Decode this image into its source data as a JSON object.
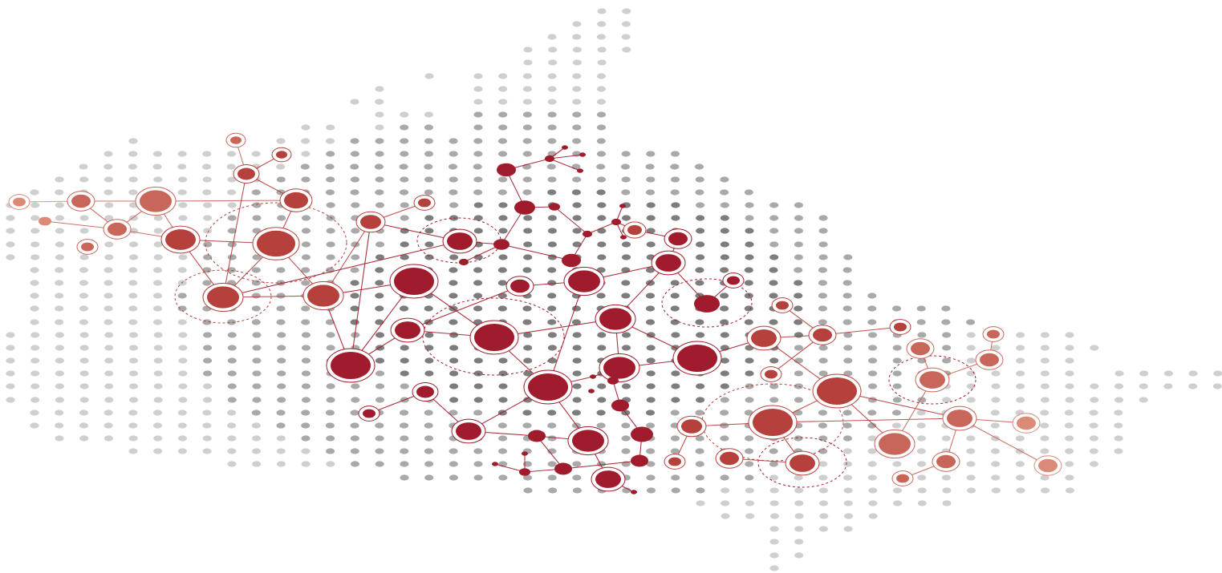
{
  "illustration": {
    "subject": "dotted-map-network",
    "colors": {
      "background": "#ffffff",
      "dot_light": "#cfcfcf",
      "dot_mid": "#a9a9a9",
      "dot_dark": "#7d7d7d",
      "node_dark": "#a01c2c",
      "node_mid": "#b5403c",
      "node_light": "#c9665a",
      "node_pale": "#db8a78"
    }
  }
}
